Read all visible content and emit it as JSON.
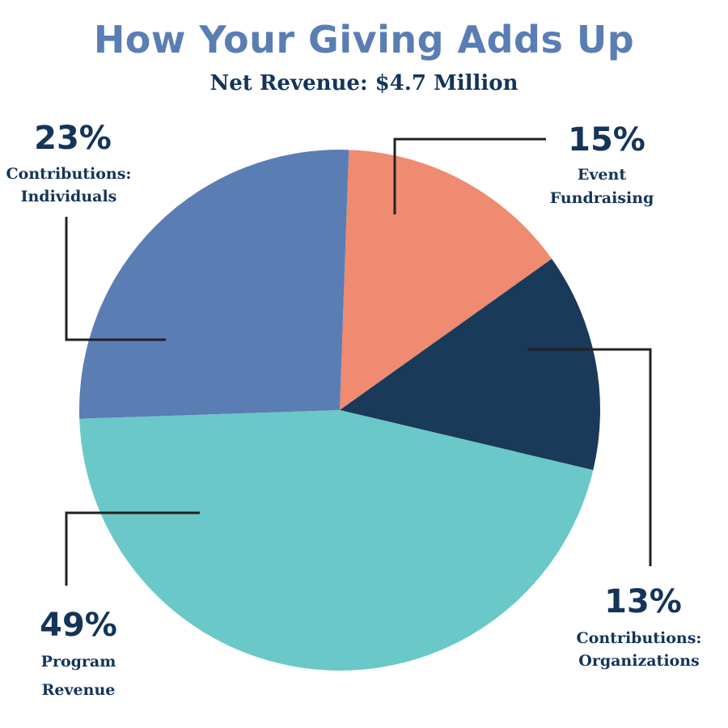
{
  "title": "How Your Giving Adds Up",
  "subtitle": "Net Revenue: $4.7 Million",
  "chart_data": {
    "type": "pie",
    "title": "How Your Giving Adds Up",
    "subtitle": "Net Revenue: $4.7 Million",
    "start_angle_deg": 0,
    "direction": "clockwise",
    "slices": [
      {
        "label": "Event Fundraising",
        "label_lines": [
          "Event",
          "Fundraising"
        ],
        "value": 15,
        "display": "15%",
        "color": "#ee8b70"
      },
      {
        "label": "Contributions: Organizations",
        "label_lines": [
          "Contributions:",
          "Organizations"
        ],
        "value": 13,
        "display": "13%",
        "color": "#1a3a5a"
      },
      {
        "label": "Program Revenue",
        "label_lines": [
          "Program",
          "Revenue"
        ],
        "value": 49,
        "display": "49%",
        "color": "#6ac8c8"
      },
      {
        "label": "Contributions: Individuals",
        "label_lines": [
          "Contributions:",
          "Individuals"
        ],
        "value": 23,
        "display": "23%",
        "color": "#5a7db4"
      }
    ],
    "legend": "none",
    "leader_line_color": "#222222"
  }
}
